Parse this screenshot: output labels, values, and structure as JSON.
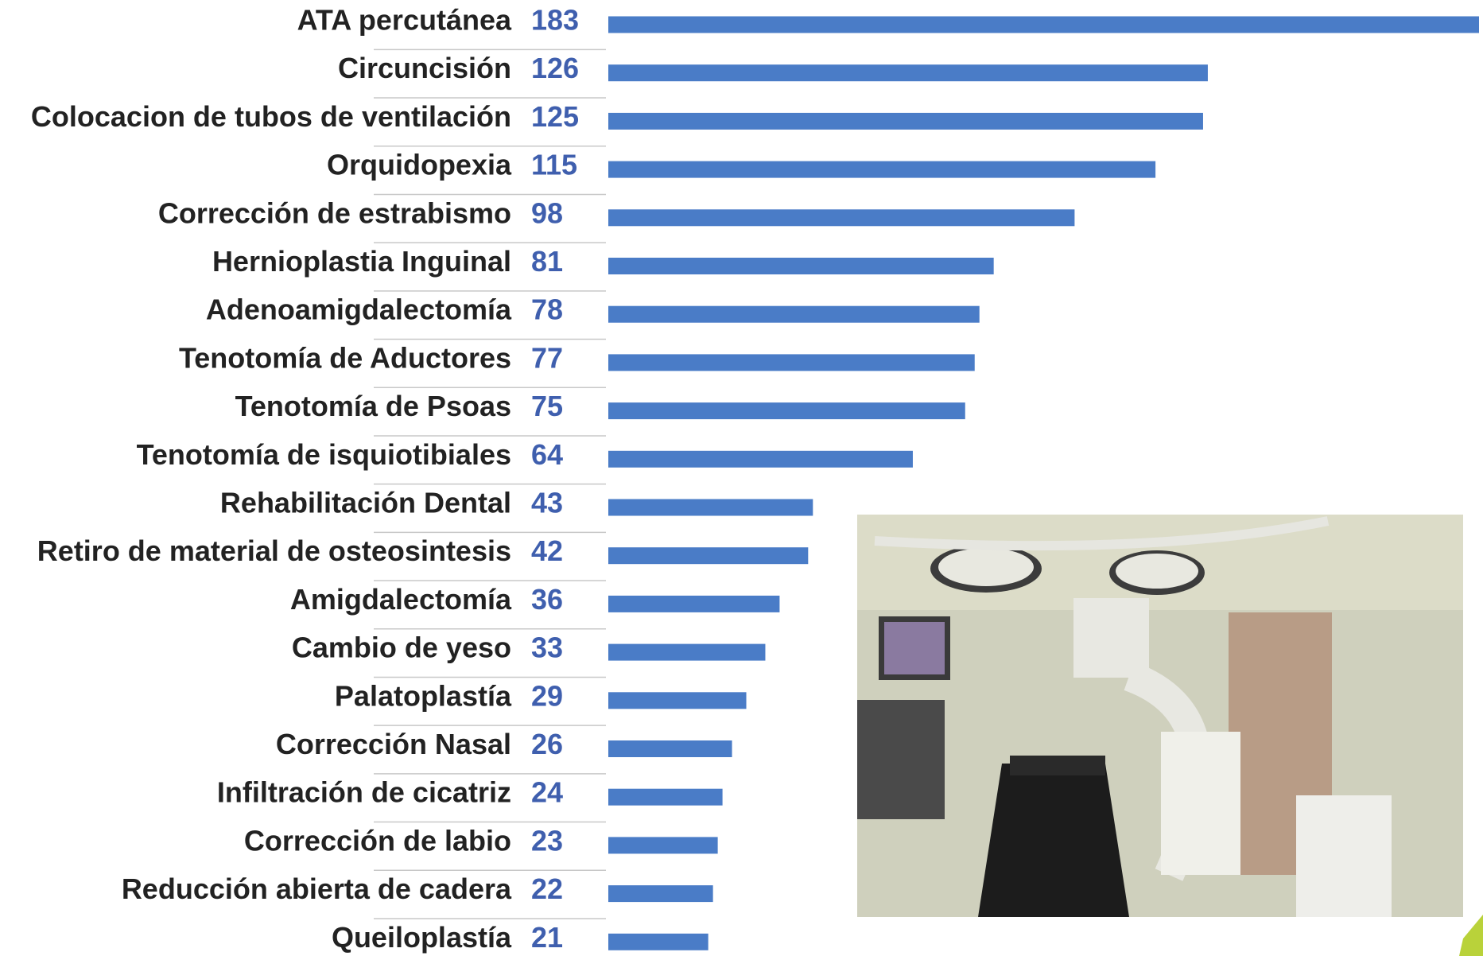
{
  "chart_data": {
    "type": "bar",
    "orientation": "horizontal",
    "categories": [
      "ATA percutánea",
      "Circuncisión",
      "Colocacion de tubos de ventilación",
      "Orquidopexia",
      "Corrección de estrabismo",
      "Hernioplastia Inguinal",
      "Adenoamigdalectomía",
      "Tenotomía de Aductores",
      "Tenotomía de Psoas",
      "Tenotomía de isquiotibiales",
      "Rehabilitación Dental",
      "Retiro de material de osteosintesis",
      "Amigdalectomía",
      "Cambio de yeso",
      "Palatoplastía",
      "Corrección Nasal",
      "Infiltración de cicatriz",
      "Corrección de labio",
      "Reducción abierta de cadera",
      "Queiloplastía"
    ],
    "values": [
      183,
      126,
      125,
      115,
      98,
      81,
      78,
      77,
      75,
      64,
      43,
      42,
      36,
      33,
      29,
      26,
      24,
      23,
      22,
      21
    ],
    "color": "#4a7cc7",
    "value_label_color": "#3f5fae"
  }
}
